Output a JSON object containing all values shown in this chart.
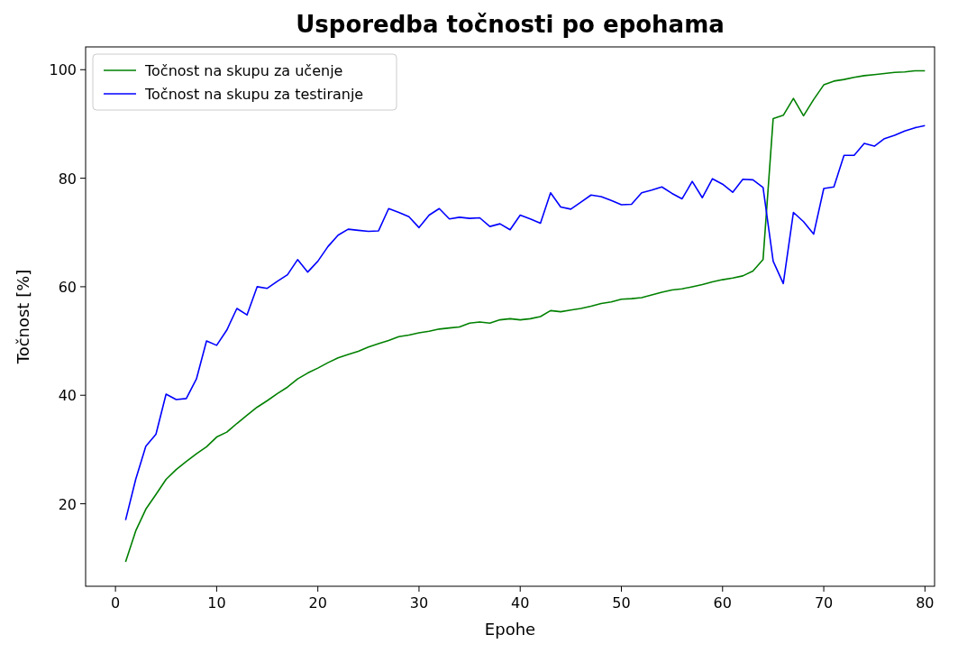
{
  "chart_data": {
    "type": "line",
    "title": "Usporedba točnosti po epohama",
    "xlabel": "Epohe",
    "ylabel": "Točnost [%]",
    "x": [
      1,
      2,
      3,
      4,
      5,
      6,
      7,
      8,
      9,
      10,
      11,
      12,
      13,
      14,
      15,
      16,
      17,
      18,
      19,
      20,
      21,
      22,
      23,
      24,
      25,
      26,
      27,
      28,
      29,
      30,
      31,
      32,
      33,
      34,
      35,
      36,
      37,
      38,
      39,
      40,
      41,
      42,
      43,
      44,
      45,
      46,
      47,
      48,
      49,
      50,
      51,
      52,
      53,
      54,
      55,
      56,
      57,
      58,
      59,
      60,
      61,
      62,
      63,
      64,
      65,
      66,
      67,
      68,
      69,
      70,
      71,
      72,
      73,
      74,
      75,
      76,
      77,
      78,
      79,
      80
    ],
    "series": [
      {
        "name": "Točnost na skupu za učenje",
        "color": "#008000",
        "values": [
          9.3,
          15,
          19,
          21.7,
          24.5,
          26.3,
          27.8,
          29.2,
          30.5,
          32.3,
          33.2,
          34.8,
          36.3,
          37.8,
          39,
          40.3,
          41.5,
          43,
          44.1,
          45,
          46,
          46.9,
          47.5,
          48.1,
          48.9,
          49.5,
          50.1,
          50.8,
          51.1,
          51.5,
          51.8,
          52.2,
          52.4,
          52.6,
          53.3,
          53.5,
          53.3,
          53.9,
          54.1,
          53.9,
          54.1,
          54.5,
          55.6,
          55.4,
          55.7,
          56,
          56.4,
          56.9,
          57.2,
          57.7,
          57.8,
          58,
          58.5,
          59,
          59.4,
          59.6,
          60,
          60.4,
          60.9,
          61.3,
          61.6,
          62,
          62.9,
          65,
          91,
          91.6,
          94.7,
          91.5,
          94.5,
          97.2,
          97.9,
          98.2,
          98.6,
          98.9,
          99.1,
          99.3,
          99.5,
          99.6,
          99.8,
          99.8
        ]
      },
      {
        "name": "Točnost na skupu za testiranje",
        "color": "#0000ff",
        "values": [
          17,
          24.5,
          30.6,
          32.8,
          40.2,
          39.2,
          39.4,
          43,
          50,
          49.2,
          52,
          56,
          54.8,
          60,
          59.7,
          61,
          62.2,
          65,
          62.7,
          64.7,
          67.4,
          69.5,
          70.6,
          70.4,
          70.2,
          70.3,
          74.4,
          73.7,
          72.9,
          70.9,
          73.2,
          74.4,
          72.5,
          72.8,
          72.6,
          72.7,
          71.1,
          71.6,
          70.5,
          73.2,
          72.5,
          71.7,
          77.3,
          74.7,
          74.3,
          75.6,
          76.9,
          76.6,
          75.9,
          75.1,
          75.2,
          77.3,
          77.8,
          78.4,
          77.2,
          76.2,
          79.4,
          76.4,
          79.9,
          78.9,
          77.4,
          79.8,
          79.7,
          78.3,
          64.7,
          60.6,
          73.7,
          72,
          69.7,
          78.1,
          78.4,
          84.2,
          84.2,
          86.4,
          85.9,
          87.3,
          87.9,
          88.7,
          89.3,
          89.7
        ]
      }
    ],
    "xlim": [
      -2.95,
      80.95
    ],
    "ylim": [
      4.8,
      104.2
    ],
    "xticks": [
      0,
      10,
      20,
      30,
      40,
      50,
      60,
      70,
      80
    ],
    "yticks": [
      20,
      40,
      60,
      80,
      100
    ],
    "legend": "top left",
    "grid": false,
    "line_style": "solid",
    "marker": "none"
  }
}
